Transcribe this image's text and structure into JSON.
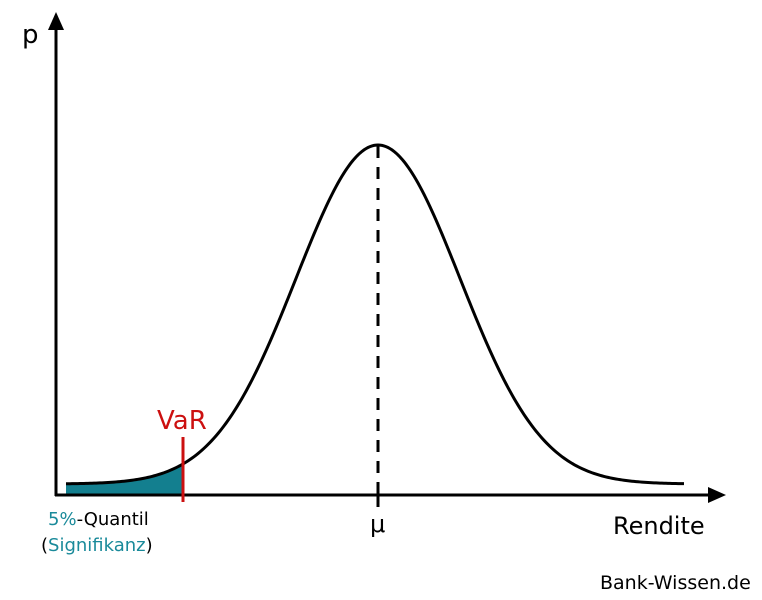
{
  "diagram": {
    "y_axis_label": "p",
    "x_axis_label": "Rendite",
    "mean_label": "μ",
    "var_label": "VaR",
    "quantile": {
      "percent": "5%",
      "suffix": "-Quantil",
      "open_paren": "(",
      "significance": "Signifikanz",
      "close_paren": ")"
    }
  },
  "watermark": "Bank-Wissen.de",
  "colors": {
    "curve": "#000000",
    "tail_fill": "#137f8f",
    "var_line": "#cc1010",
    "accent_text": "#1a8a9a"
  }
}
